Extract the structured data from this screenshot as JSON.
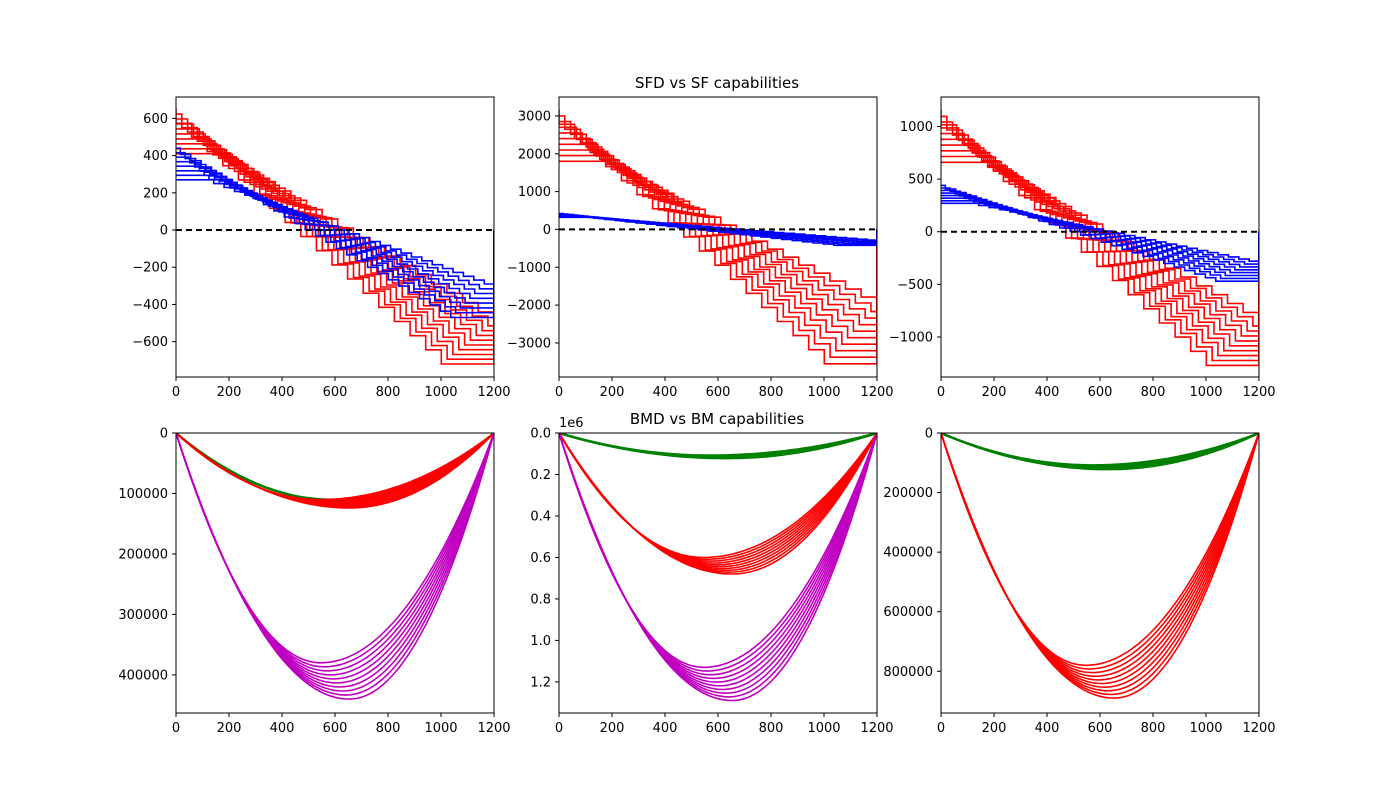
{
  "figure": {
    "titles": [
      "SFD vs SF capabilities",
      "BMD vs BM capabilities"
    ]
  },
  "colors": {
    "capability_shear": "#ff0000",
    "demand_shear": "#0000ff",
    "zero_line": "#000000",
    "demand_moment": "#008000",
    "capability_moment_red": "#ff0000",
    "capability_moment_magenta": "#c000c0"
  },
  "chart_data": [
    {
      "type": "line",
      "panel": "top-left",
      "title": "",
      "xlim": [
        0,
        1200
      ],
      "ylim": [
        -790,
        715
      ],
      "xticks": [
        0,
        200,
        400,
        600,
        800,
        1000,
        1200
      ],
      "xtick_labels": [
        "0",
        "200",
        "400",
        "600",
        "800",
        "1000",
        "1200"
      ],
      "yticks": [
        -600,
        -400,
        -200,
        0,
        200,
        400,
        600
      ],
      "ytick_labels": [
        "−600",
        "−400",
        "−200",
        "0",
        "200",
        "400",
        "600"
      ],
      "zero_line": true,
      "series": [
        {
          "role": "capability",
          "color": "red",
          "style": "step",
          "count": 10,
          "start_max": 650,
          "start_min": 410,
          "end_min": -490,
          "end_max": -720,
          "step_width": 60,
          "shift": 22
        },
        {
          "role": "demand",
          "color": "blue",
          "style": "step",
          "count": 8,
          "start_max": 440,
          "start_min": 270,
          "end_min": -290,
          "end_max": -470,
          "step_width": 40,
          "shift": 18
        }
      ]
    },
    {
      "type": "line",
      "panel": "top-middle",
      "title": "SFD vs SF capabilities",
      "xlim": [
        0,
        1200
      ],
      "ylim": [
        -3900,
        3500
      ],
      "xticks": [
        0,
        200,
        400,
        600,
        800,
        1000,
        1200
      ],
      "xtick_labels": [
        "0",
        "200",
        "400",
        "600",
        "800",
        "1000",
        "1200"
      ],
      "yticks": [
        -3000,
        -2000,
        -1000,
        0,
        1000,
        2000,
        3000
      ],
      "ytick_labels": [
        "−3000",
        "−2000",
        "−1000",
        "0",
        "1000",
        "2000",
        "3000"
      ],
      "zero_line": true,
      "series": [
        {
          "role": "capability",
          "color": "red",
          "style": "step",
          "count": 10,
          "start_max": 3150,
          "start_min": 1800,
          "end_min": -2000,
          "end_max": -3550,
          "step_width": 60,
          "shift": 22
        },
        {
          "role": "demand",
          "color": "blue",
          "style": "step",
          "count": 8,
          "start_max": 420,
          "start_min": 320,
          "end_min": -280,
          "end_max": -420,
          "step_width": 40,
          "shift": 18
        }
      ]
    },
    {
      "type": "line",
      "panel": "top-right",
      "title": "",
      "xlim": [
        0,
        1200
      ],
      "ylim": [
        -1380,
        1280
      ],
      "xticks": [
        0,
        200,
        400,
        600,
        800,
        1000,
        1200
      ],
      "xtick_labels": [
        "0",
        "200",
        "400",
        "600",
        "800",
        "1000",
        "1200"
      ],
      "yticks": [
        -1000,
        -500,
        0,
        500,
        1000
      ],
      "ytick_labels": [
        "−1000",
        "−500",
        "0",
        "500",
        "1000"
      ],
      "zero_line": true,
      "series": [
        {
          "role": "capability",
          "color": "red",
          "style": "step",
          "count": 10,
          "start_max": 1150,
          "start_min": 660,
          "end_min": -850,
          "end_max": -1270,
          "step_width": 60,
          "shift": 22
        },
        {
          "role": "demand",
          "color": "blue",
          "style": "step",
          "count": 8,
          "start_max": 440,
          "start_min": 270,
          "end_min": -280,
          "end_max": -470,
          "step_width": 40,
          "shift": 18
        }
      ]
    },
    {
      "type": "line",
      "panel": "bottom-left",
      "title": "",
      "xlim": [
        0,
        1200
      ],
      "ylim": [
        0,
        463000
      ],
      "y_inverted": true,
      "xticks": [
        0,
        200,
        400,
        600,
        800,
        1000,
        1200
      ],
      "xtick_labels": [
        "0",
        "200",
        "400",
        "600",
        "800",
        "1000",
        "1200"
      ],
      "yticks": [
        0,
        100000,
        200000,
        300000,
        400000
      ],
      "ytick_labels": [
        "0",
        "100000",
        "200000",
        "300000",
        "400000"
      ],
      "zero_line": true,
      "series": [
        {
          "role": "demand",
          "color": "green",
          "style": "moment",
          "count": 3,
          "peak_min": 110000,
          "peak_max": 112000
        },
        {
          "role": "capability",
          "color": "red",
          "style": "moment",
          "count": 10,
          "peak_min": 110000,
          "peak_max": 124000
        },
        {
          "role": "capability",
          "color": "magenta",
          "style": "moment",
          "count": 10,
          "peak_min": 380000,
          "peak_max": 440000
        }
      ]
    },
    {
      "type": "line",
      "panel": "bottom-middle",
      "title": "BMD vs BM capabilities",
      "xlim": [
        0,
        1200
      ],
      "ylim": [
        0,
        1350000
      ],
      "y_inverted": true,
      "offset_label": "1e6",
      "xticks": [
        0,
        200,
        400,
        600,
        800,
        1000,
        1200
      ],
      "xtick_labels": [
        "0",
        "200",
        "400",
        "600",
        "800",
        "1000",
        "1200"
      ],
      "yticks": [
        0,
        200000,
        400000,
        600000,
        800000,
        1000000,
        1200000
      ],
      "ytick_labels": [
        "0.0",
        "0.2",
        "0.4",
        "0.6",
        "0.8",
        "1.0",
        "1.2"
      ],
      "zero_line": true,
      "series": [
        {
          "role": "demand",
          "color": "green",
          "style": "moment",
          "count": 6,
          "peak_min": 108000,
          "peak_max": 122000
        },
        {
          "role": "capability",
          "color": "red",
          "style": "moment",
          "count": 10,
          "peak_min": 600000,
          "peak_max": 680000
        },
        {
          "role": "capability",
          "color": "magenta",
          "style": "moment",
          "count": 10,
          "peak_min": 1130000,
          "peak_max": 1290000
        }
      ]
    },
    {
      "type": "line",
      "panel": "bottom-right",
      "title": "",
      "xlim": [
        0,
        1200
      ],
      "ylim": [
        0,
        940000
      ],
      "y_inverted": true,
      "xticks": [
        0,
        200,
        400,
        600,
        800,
        1000,
        1200
      ],
      "xtick_labels": [
        "0",
        "200",
        "400",
        "600",
        "800",
        "1000",
        "1200"
      ],
      "yticks": [
        0,
        200000,
        400000,
        600000,
        800000
      ],
      "ytick_labels": [
        "0",
        "200000",
        "400000",
        "600000",
        "800000"
      ],
      "zero_line": true,
      "series": [
        {
          "role": "demand",
          "color": "green",
          "style": "moment",
          "count": 6,
          "peak_min": 108000,
          "peak_max": 122000
        },
        {
          "role": "capability",
          "color": "red",
          "style": "moment",
          "count": 10,
          "peak_min": 780000,
          "peak_max": 890000
        }
      ]
    }
  ]
}
